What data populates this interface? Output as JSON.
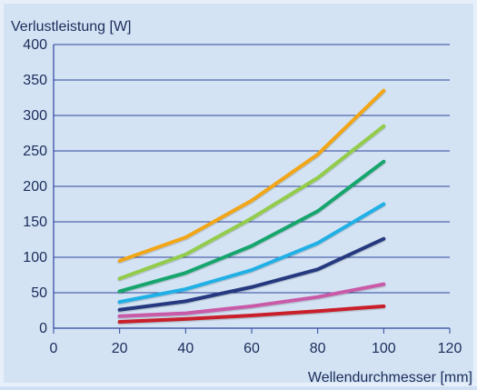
{
  "chart_data": {
    "type": "line",
    "title": "",
    "xlabel": "Wellendurchmesser [mm]",
    "ylabel": "Verlustleistung [W]",
    "xlim": [
      0,
      120
    ],
    "ylim": [
      0,
      400
    ],
    "x_ticks": [
      "0",
      "20",
      "40",
      "60",
      "80",
      "100",
      "120"
    ],
    "y_ticks": [
      "0",
      "50",
      "100",
      "150",
      "200",
      "250",
      "300",
      "350",
      "400"
    ],
    "grid": "horizontal",
    "legend": "none",
    "series": [
      {
        "color": "#f2a617",
        "points": [
          [
            20,
            95
          ],
          [
            40,
            128
          ],
          [
            60,
            180
          ],
          [
            80,
            245
          ],
          [
            100,
            335
          ]
        ]
      },
      {
        "color": "#93cc4a",
        "points": [
          [
            20,
            70
          ],
          [
            40,
            104
          ],
          [
            60,
            155
          ],
          [
            80,
            212
          ],
          [
            100,
            285
          ]
        ]
      },
      {
        "color": "#16a56d",
        "points": [
          [
            20,
            52
          ],
          [
            40,
            78
          ],
          [
            60,
            116
          ],
          [
            80,
            165
          ],
          [
            100,
            235
          ]
        ]
      },
      {
        "color": "#21b0e5",
        "points": [
          [
            20,
            37
          ],
          [
            40,
            55
          ],
          [
            60,
            82
          ],
          [
            80,
            120
          ],
          [
            100,
            175
          ]
        ]
      },
      {
        "color": "#26397f",
        "points": [
          [
            20,
            26
          ],
          [
            40,
            38
          ],
          [
            60,
            58
          ],
          [
            80,
            83
          ],
          [
            100,
            126
          ]
        ]
      },
      {
        "color": "#c95aa8",
        "points": [
          [
            20,
            17
          ],
          [
            40,
            21
          ],
          [
            60,
            31
          ],
          [
            80,
            44
          ],
          [
            100,
            62
          ]
        ]
      },
      {
        "color": "#c81f2a",
        "points": [
          [
            20,
            9
          ],
          [
            40,
            13
          ],
          [
            60,
            18
          ],
          [
            80,
            24
          ],
          [
            100,
            31
          ]
        ]
      }
    ]
  }
}
